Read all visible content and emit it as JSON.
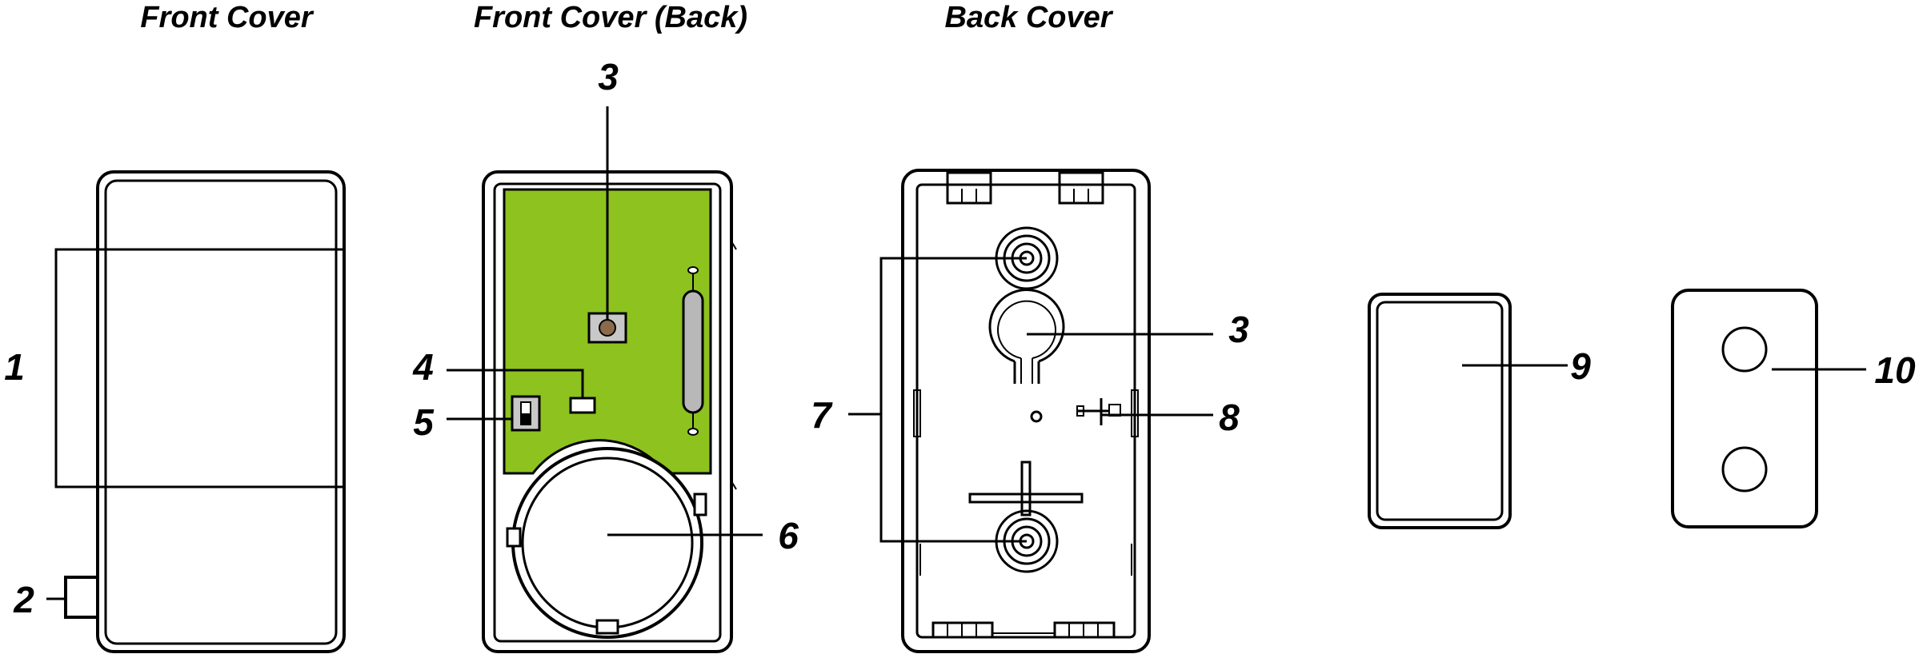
{
  "headings": {
    "front_cover": "Front Cover",
    "front_cover_back": "Front Cover (Back)",
    "back_cover": "Back Cover"
  },
  "callouts": {
    "c1": "1",
    "c2": "2",
    "c3_front_back": "3",
    "c4": "4",
    "c5": "5",
    "c6": "6",
    "c7": "7",
    "c3_back": "3",
    "c8": "8",
    "c9": "9",
    "c10": "10"
  },
  "colors": {
    "pcb": "#8dc21f",
    "line": "#000000",
    "background": "#ffffff"
  }
}
